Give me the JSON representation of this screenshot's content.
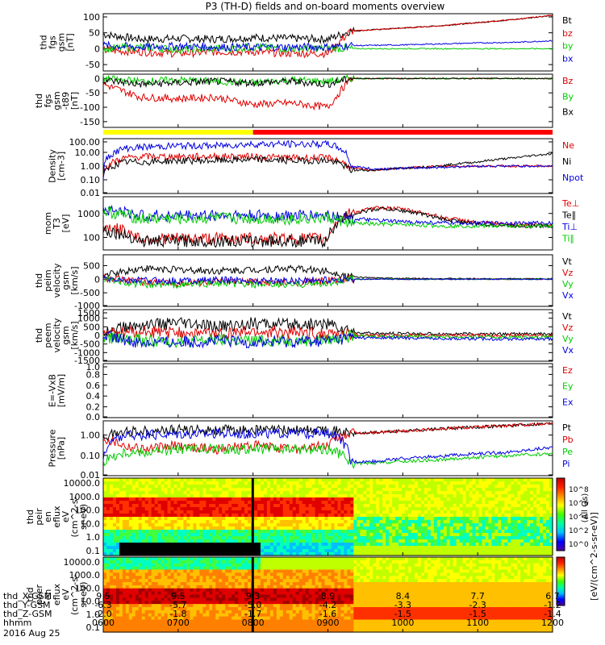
{
  "title": "P3 (TH-D) fields and on-board moments overview",
  "time_labels": [
    "0600",
    "0700",
    "0800",
    "0900",
    "1000",
    "1100",
    "1200"
  ],
  "ephemeris": {
    "labels": [
      "thd_X-GSM",
      "thd_Y-GSM",
      "thd_Z-GSM",
      "hhmm",
      "2016 Aug 25"
    ],
    "rows": [
      [
        "9.5",
        "9.5",
        "9.3",
        "8.9",
        "8.4",
        "7.7",
        "6.7"
      ],
      [
        "-6.3",
        "-5.7",
        "-5.0",
        "-4.2",
        "-3.3",
        "-2.3",
        "-1.2"
      ],
      [
        "-2.0",
        "-1.8",
        "-1.7",
        "-1.6",
        "-1.5",
        "-1.5",
        "-1.4"
      ]
    ]
  },
  "colorbar": {
    "title": "[eV/(cm^2-s-sr-eV)]",
    "ticks": [
      "10^8",
      "10^6",
      "10^4",
      "10^2",
      "10^0"
    ],
    "subtitle": "(All Qs)"
  },
  "chart_data": [
    {
      "type": "line",
      "panel": "fgs_gsm",
      "ylabel": [
        "thd",
        "fgs",
        "gsm",
        "[nT]"
      ],
      "yticks": [
        "100",
        "50",
        "0",
        "-50"
      ],
      "ylim": [
        -70,
        110
      ],
      "legend": [
        {
          "label": "Bt",
          "color": "#000000"
        },
        {
          "label": "bz",
          "color": "#e00000"
        },
        {
          "label": "by",
          "color": "#00cc00"
        },
        {
          "label": "bx",
          "color": "#0000e0"
        }
      ],
      "x": [
        6.0,
        6.5,
        7.0,
        7.5,
        8.0,
        8.5,
        9.0,
        9.3,
        9.5,
        10.0,
        10.5,
        11.0,
        11.5,
        12.0
      ],
      "series": [
        {
          "name": "Bt",
          "values": [
            45,
            30,
            32,
            30,
            35,
            32,
            30,
            55,
            58,
            65,
            72,
            82,
            92,
            105
          ]
        },
        {
          "name": "bz",
          "values": [
            -5,
            -10,
            -15,
            -10,
            -10,
            -15,
            -15,
            55,
            58,
            65,
            72,
            82,
            92,
            105
          ]
        },
        {
          "name": "by",
          "values": [
            0,
            5,
            -2,
            0,
            5,
            0,
            2,
            0,
            0,
            0,
            0,
            0,
            0,
            0
          ]
        },
        {
          "name": "bx",
          "values": [
            10,
            5,
            8,
            5,
            5,
            5,
            5,
            10,
            10,
            12,
            15,
            18,
            20,
            25
          ]
        }
      ]
    },
    {
      "type": "line",
      "panel": "fgs_gsm_t89",
      "ylabel": [
        "thd",
        "fgs",
        "gsm",
        "-t89",
        "[nT]"
      ],
      "yticks": [
        "0",
        "-50",
        "-100",
        "-150"
      ],
      "ylim": [
        -170,
        15
      ],
      "legend": [
        {
          "label": "Bz",
          "color": "#e00000"
        },
        {
          "label": "By",
          "color": "#00cc00"
        },
        {
          "label": "Bx",
          "color": "#000000"
        }
      ],
      "x": [
        6.0,
        6.5,
        7.0,
        7.5,
        8.0,
        8.5,
        9.0,
        9.3,
        10.0,
        11.0,
        12.0
      ],
      "series": [
        {
          "name": "Bz",
          "values": [
            -20,
            -65,
            -70,
            -65,
            -90,
            -85,
            -100,
            0,
            0,
            0,
            0
          ]
        },
        {
          "name": "By",
          "values": [
            0,
            -10,
            -5,
            -10,
            -15,
            -5,
            -10,
            0,
            0,
            0,
            0
          ]
        },
        {
          "name": "Bx",
          "values": [
            -5,
            -20,
            -15,
            -10,
            -15,
            -10,
            -20,
            0,
            0,
            0,
            0
          ]
        }
      ]
    },
    {
      "type": "line",
      "panel": "density",
      "ylabel": [
        "Density",
        "[cm-3]"
      ],
      "yticks": [
        "100.00",
        "10.00",
        "1.00",
        "0.10",
        "0.01"
      ],
      "ylim": [
        0.01,
        100
      ],
      "yscale": "log",
      "legend": [
        {
          "label": "Ne",
          "color": "#e00000"
        },
        {
          "label": "Ni",
          "color": "#000000"
        },
        {
          "label": "Npot",
          "color": "#0000e0"
        }
      ],
      "x": [
        6.0,
        6.3,
        6.6,
        7.0,
        7.5,
        8.0,
        8.5,
        9.0,
        9.3,
        9.6,
        10.0,
        10.5,
        11.0,
        11.5,
        12.0
      ],
      "series": [
        {
          "name": "Ne",
          "values": [
            0.3,
            4,
            5,
            5,
            5,
            5,
            4,
            4,
            0.7,
            0.5,
            0.7,
            1.0,
            1.0,
            1.0,
            1.0
          ]
        },
        {
          "name": "Ni",
          "values": [
            0.2,
            2,
            2,
            2.5,
            2.5,
            3,
            2.5,
            2.5,
            0.5,
            0.5,
            0.7,
            1.0,
            2,
            4,
            8
          ]
        },
        {
          "name": "Npot",
          "values": [
            0.15,
            20,
            25,
            30,
            30,
            40,
            40,
            40,
            1,
            0.6,
            0.7,
            0.8,
            1.0,
            1.0,
            1.0
          ]
        }
      ]
    },
    {
      "type": "line",
      "panel": "mom_temperature",
      "ylabel": [
        "mom",
        "T3",
        "[eV]"
      ],
      "yticks": [
        "1000",
        "100"
      ],
      "ylim": [
        30,
        5000
      ],
      "yscale": "log",
      "legend": [
        {
          "label": "Te⊥",
          "color": "#e00000"
        },
        {
          "label": "Te∥",
          "color": "#000000"
        },
        {
          "label": "Ti⊥",
          "color": "#0000e0"
        },
        {
          "label": "Ti∥",
          "color": "#00cc00"
        }
      ],
      "x": [
        6.0,
        6.5,
        7.0,
        7.5,
        8.0,
        8.5,
        9.0,
        9.3,
        9.7,
        10.0,
        10.5,
        11.0,
        11.5,
        12.0
      ],
      "series": [
        {
          "name": "Te⊥",
          "values": [
            300,
            90,
            90,
            90,
            90,
            90,
            90,
            1000,
            1800,
            1500,
            700,
            400,
            350,
            350
          ]
        },
        {
          "name": "Te∥",
          "values": [
            200,
            70,
            70,
            70,
            70,
            70,
            70,
            900,
            1600,
            1300,
            600,
            350,
            300,
            300
          ]
        },
        {
          "name": "Ti⊥",
          "values": [
            1500,
            800,
            800,
            850,
            800,
            800,
            850,
            600,
            500,
            450,
            400,
            400,
            400,
            400
          ]
        },
        {
          "name": "Ti∥",
          "values": [
            1200,
            600,
            600,
            650,
            600,
            600,
            650,
            400,
            350,
            350,
            300,
            300,
            300,
            300
          ]
        }
      ]
    },
    {
      "type": "line",
      "panel": "peim_velocity",
      "ylabel": [
        "thd",
        "peim",
        "velocity",
        "gsm",
        "[km/s]"
      ],
      "yticks": [
        "500",
        "0",
        "-500",
        "-1000"
      ],
      "ylim": [
        -1000,
        900
      ],
      "legend": [
        {
          "label": "Vt",
          "color": "#000000"
        },
        {
          "label": "Vz",
          "color": "#e00000"
        },
        {
          "label": "Vy",
          "color": "#00cc00"
        },
        {
          "label": "Vx",
          "color": "#0000e0"
        }
      ],
      "x": [
        6.0,
        6.5,
        7.0,
        7.5,
        8.0,
        8.5,
        9.0,
        9.3,
        9.6,
        10.0,
        11.0,
        12.0
      ],
      "series": [
        {
          "name": "Vt",
          "values": [
            150,
            400,
            350,
            300,
            350,
            400,
            300,
            100,
            50,
            30,
            20,
            20
          ]
        },
        {
          "name": "Vz",
          "values": [
            50,
            -100,
            -150,
            -100,
            -100,
            -150,
            -50,
            0,
            0,
            0,
            0,
            0
          ]
        },
        {
          "name": "Vy",
          "values": [
            0,
            -200,
            -200,
            -150,
            -200,
            -200,
            -150,
            0,
            0,
            0,
            0,
            0
          ]
        },
        {
          "name": "Vx",
          "values": [
            0,
            -50,
            -50,
            -30,
            -50,
            -50,
            -30,
            0,
            0,
            0,
            0,
            0
          ]
        }
      ]
    },
    {
      "type": "line",
      "panel": "peem_velocity",
      "ylabel": [
        "thd",
        "peem",
        "velocity",
        "gsm",
        "[km/s]"
      ],
      "yticks": [
        "1500",
        "1000",
        "500",
        "0",
        "-500",
        "-1000",
        "-1500"
      ],
      "ylim": [
        -1500,
        1500
      ],
      "legend": [
        {
          "label": "Vt",
          "color": "#000000"
        },
        {
          "label": "Vz",
          "color": "#e00000"
        },
        {
          "label": "Vy",
          "color": "#00cc00"
        },
        {
          "label": "Vx",
          "color": "#0000e0"
        }
      ],
      "x": [
        6.0,
        6.5,
        7.0,
        7.5,
        8.0,
        8.5,
        9.0,
        9.3,
        9.6,
        10.0,
        11.0,
        12.0
      ],
      "series": [
        {
          "name": "Vt",
          "values": [
            300,
            600,
            700,
            500,
            700,
            600,
            700,
            200,
            100,
            100,
            80,
            80
          ]
        },
        {
          "name": "Vz",
          "values": [
            100,
            200,
            150,
            100,
            200,
            150,
            100,
            50,
            0,
            0,
            0,
            0
          ]
        },
        {
          "name": "Vy",
          "values": [
            -100,
            -300,
            -350,
            -250,
            -300,
            -300,
            -250,
            -50,
            -50,
            -50,
            -100,
            -100
          ]
        },
        {
          "name": "Vx",
          "values": [
            -50,
            -400,
            -400,
            -300,
            -400,
            -350,
            -300,
            -100,
            -150,
            -150,
            -200,
            -200
          ]
        }
      ]
    },
    {
      "type": "line",
      "panel": "e_field",
      "ylabel": [
        "E=-VxB",
        "[mV/m]"
      ],
      "yticks": [
        "1.0",
        "0.8",
        "0.6",
        "0.4",
        "0.2",
        "0.0"
      ],
      "ylim": [
        0,
        1
      ],
      "legend": [
        {
          "label": "Ez",
          "color": "#e00000"
        },
        {
          "label": "Ey",
          "color": "#00cc00"
        },
        {
          "label": "Ex",
          "color": "#0000e0"
        }
      ],
      "series": []
    },
    {
      "type": "line",
      "panel": "pressure",
      "ylabel": [
        "Pressure",
        "[nPa]"
      ],
      "yticks": [
        "1.00",
        "0.10",
        "0.01"
      ],
      "ylim": [
        0.01,
        5
      ],
      "yscale": "log",
      "legend": [
        {
          "label": "Pt",
          "color": "#000000"
        },
        {
          "label": "Pb",
          "color": "#e00000"
        },
        {
          "label": "Pe",
          "color": "#00cc00"
        },
        {
          "label": "Pi",
          "color": "#0000e0"
        }
      ],
      "x": [
        6.0,
        6.3,
        6.6,
        7.0,
        7.5,
        8.0,
        8.5,
        9.0,
        9.3,
        9.6,
        10.0,
        10.5,
        11.0,
        11.5,
        12.0
      ],
      "series": [
        {
          "name": "Pt",
          "values": [
            0.8,
            1.5,
            1.6,
            1.8,
            1.8,
            1.8,
            1.8,
            1.8,
            1.2,
            1.3,
            1.6,
            2.0,
            2.5,
            3.0,
            3.8
          ]
        },
        {
          "name": "Pb",
          "values": [
            0.7,
            0.3,
            0.2,
            0.3,
            0.2,
            0.3,
            0.2,
            0.3,
            1.2,
            1.3,
            1.6,
            2.0,
            2.5,
            3.0,
            3.8
          ]
        },
        {
          "name": "Pe",
          "values": [
            0.05,
            0.15,
            0.15,
            0.2,
            0.2,
            0.2,
            0.2,
            0.2,
            0.04,
            0.04,
            0.05,
            0.06,
            0.08,
            0.1,
            0.12
          ]
        },
        {
          "name": "Pi",
          "values": [
            0.1,
            1.0,
            1.0,
            1.2,
            1.2,
            1.2,
            1.2,
            1.2,
            0.05,
            0.05,
            0.07,
            0.09,
            0.12,
            0.15,
            0.25
          ]
        }
      ]
    },
    {
      "type": "heatmap",
      "panel": "peir_spectrogram",
      "ylabel": [
        "thd",
        "peir",
        "en",
        "eflux",
        "eV",
        "(cm^2-s-",
        "sr-eV)"
      ],
      "yticks": [
        "10000.0",
        "1000.0",
        "100.0",
        "10.0",
        "1.0",
        "0.1"
      ],
      "yscale": "log"
    },
    {
      "type": "heatmap",
      "panel": "peer_spectrogram",
      "ylabel": [
        "thd",
        "peer",
        "en",
        "eflux",
        "eV",
        "(cm^2-s-",
        "sr-eV)"
      ],
      "yticks": [
        "10000.0",
        "1000.0",
        "100.0",
        "10.0",
        "1.0",
        "0.1"
      ],
      "yscale": "log"
    }
  ]
}
